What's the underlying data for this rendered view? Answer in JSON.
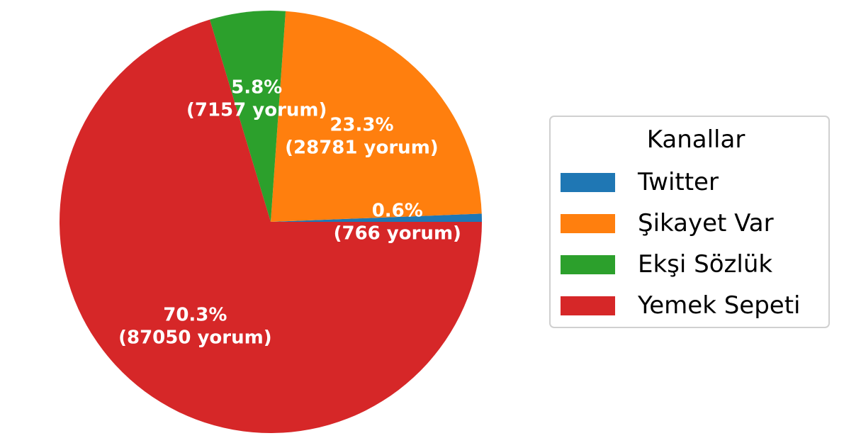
{
  "chart_data": {
    "type": "pie",
    "legend_title": "Kanallar",
    "legend_placement": "right",
    "slices": [
      {
        "name": "Twitter",
        "value": 766,
        "percent_label": "0.6%",
        "count_label": "(766 yorum)",
        "color": "#1f77b4"
      },
      {
        "name": "Şikayet Var",
        "value": 28781,
        "percent_label": "23.3%",
        "count_label": "(28781 yorum)",
        "color": "#ff7f0e"
      },
      {
        "name": "Ekşi Sözlük",
        "value": 7157,
        "percent_label": "5.8%",
        "count_label": "(7157 yorum)",
        "color": "#2ca02c"
      },
      {
        "name": "Yemek Sepeti",
        "value": 87050,
        "percent_label": "70.3%",
        "count_label": "(87050 yorum)",
        "color": "#d62728"
      }
    ]
  }
}
